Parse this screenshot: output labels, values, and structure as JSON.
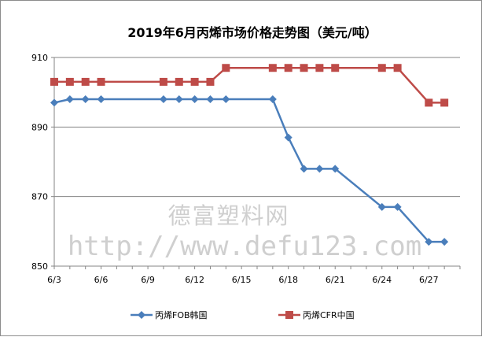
{
  "watermark": {
    "line1": "德富塑料网",
    "line2": "http://www.defu123.com"
  },
  "chart_data": {
    "type": "line",
    "title": "2019年6月丙烯市场价格走势图（美元/吨）",
    "xlabel": "",
    "ylabel": "",
    "ylim": [
      850,
      910
    ],
    "yticks": [
      850,
      870,
      890,
      910
    ],
    "grid": true,
    "legend_position": "bottom",
    "x": [
      "6/3",
      "6/4",
      "6/5",
      "6/6",
      "6/10",
      "6/11",
      "6/12",
      "6/13",
      "6/14",
      "6/17",
      "6/18",
      "6/19",
      "6/20",
      "6/21",
      "6/24",
      "6/25",
      "6/27",
      "6/28"
    ],
    "x_positions": [
      3,
      4,
      5,
      6,
      10,
      11,
      12,
      13,
      14,
      17,
      18,
      19,
      20,
      21,
      24,
      25,
      27,
      28
    ],
    "xticks": [
      {
        "label": "6/3",
        "pos": 3
      },
      {
        "label": "6/6",
        "pos": 6
      },
      {
        "label": "6/9",
        "pos": 9
      },
      {
        "label": "6/12",
        "pos": 12
      },
      {
        "label": "6/15",
        "pos": 15
      },
      {
        "label": "6/18",
        "pos": 18
      },
      {
        "label": "6/21",
        "pos": 21
      },
      {
        "label": "6/24",
        "pos": 24
      },
      {
        "label": "6/27",
        "pos": 27
      }
    ],
    "series": [
      {
        "name": "丙烯FOB韩国",
        "color": "#4a7ebb",
        "marker": "diamond",
        "values": [
          897,
          898,
          898,
          898,
          898,
          898,
          898,
          898,
          898,
          898,
          887,
          878,
          878,
          878,
          867,
          867,
          857,
          857
        ]
      },
      {
        "name": "丙烯CFR中国",
        "color": "#be4b48",
        "marker": "square",
        "values": [
          903,
          903,
          903,
          903,
          903,
          903,
          903,
          903,
          907,
          907,
          907,
          907,
          907,
          907,
          907,
          907,
          897,
          897
        ]
      }
    ]
  }
}
